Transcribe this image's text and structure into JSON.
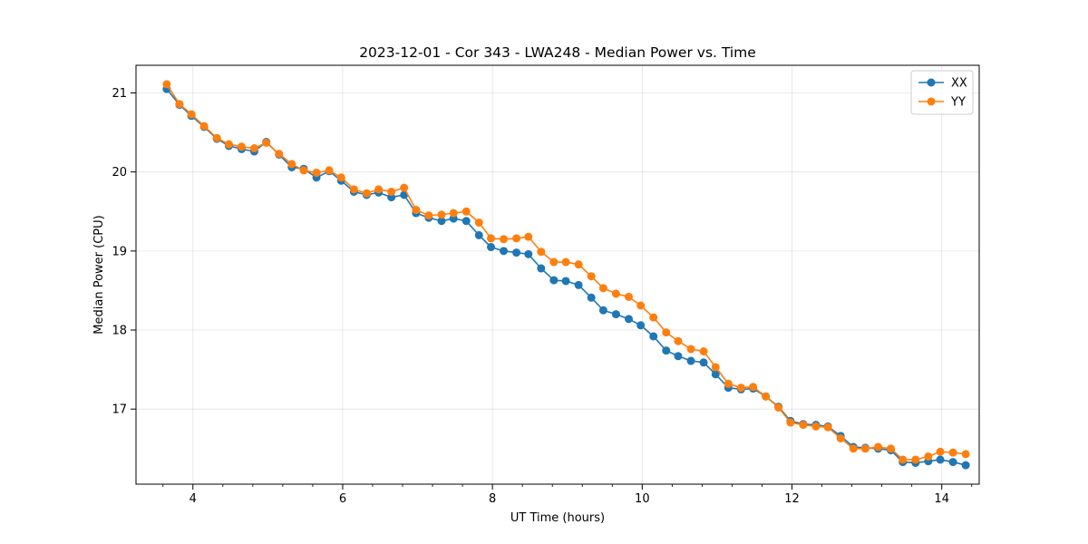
{
  "chart_data": {
    "type": "line",
    "title": "2023-12-01 - Cor 343 - LWA248 - Median Power vs. Time",
    "xlabel": "UT Time (hours)",
    "ylabel": "Median Power (CPU)",
    "xlim": [
      3.24,
      14.5
    ],
    "ylim": [
      16.05,
      21.35
    ],
    "xticks": [
      4,
      6,
      8,
      10,
      12,
      14
    ],
    "xtick_labels": [
      "4",
      "6",
      "8",
      "10",
      "12",
      "14"
    ],
    "yticks": [
      17,
      18,
      19,
      20,
      21
    ],
    "ytick_labels": [
      "17",
      "18",
      "19",
      "20",
      "21"
    ],
    "x_minor_step": 0.4,
    "grid": true,
    "legend_position": "top-right",
    "x": [
      3.65,
      3.82,
      3.98,
      4.15,
      4.32,
      4.48,
      4.65,
      4.82,
      4.98,
      5.15,
      5.32,
      5.48,
      5.65,
      5.82,
      5.98,
      6.15,
      6.32,
      6.48,
      6.65,
      6.82,
      6.98,
      7.15,
      7.32,
      7.48,
      7.65,
      7.82,
      7.98,
      8.15,
      8.32,
      8.48,
      8.65,
      8.82,
      8.98,
      9.15,
      9.32,
      9.48,
      9.65,
      9.82,
      9.98,
      10.15,
      10.32,
      10.48,
      10.65,
      10.82,
      10.98,
      11.15,
      11.32,
      11.48,
      11.65,
      11.82,
      11.98,
      12.15,
      12.32,
      12.48,
      12.65,
      12.82,
      12.98,
      13.15,
      13.32,
      13.48,
      13.65,
      13.82,
      13.98,
      14.15,
      14.32
    ],
    "series": [
      {
        "name": "XX",
        "color": "#1f77b4",
        "values": [
          21.05,
          20.85,
          20.71,
          20.57,
          20.42,
          20.33,
          20.29,
          20.26,
          20.38,
          20.22,
          20.06,
          20.04,
          19.93,
          20.01,
          19.89,
          19.75,
          19.71,
          19.74,
          19.68,
          19.71,
          19.48,
          19.42,
          19.38,
          19.41,
          19.38,
          19.2,
          19.05,
          19.0,
          18.98,
          18.96,
          18.78,
          18.63,
          18.62,
          18.57,
          18.41,
          18.25,
          18.2,
          18.14,
          18.06,
          17.92,
          17.74,
          17.67,
          17.61,
          17.59,
          17.44,
          17.27,
          17.25,
          17.26,
          17.16,
          17.03,
          16.85,
          16.81,
          16.8,
          16.78,
          16.66,
          16.52,
          16.51,
          16.5,
          16.48,
          16.33,
          16.32,
          16.34,
          16.36,
          16.33,
          16.29
        ]
      },
      {
        "name": "YY",
        "color": "#ff7f0e",
        "values": [
          21.11,
          20.86,
          20.73,
          20.58,
          20.43,
          20.35,
          20.32,
          20.3,
          20.37,
          20.23,
          20.1,
          20.02,
          19.99,
          20.02,
          19.93,
          19.78,
          19.73,
          19.78,
          19.75,
          19.8,
          19.52,
          19.45,
          19.46,
          19.48,
          19.5,
          19.36,
          19.16,
          19.15,
          19.16,
          19.18,
          18.99,
          18.86,
          18.86,
          18.83,
          18.68,
          18.53,
          18.46,
          18.42,
          18.31,
          18.16,
          17.97,
          17.86,
          17.76,
          17.73,
          17.53,
          17.32,
          17.27,
          17.28,
          17.16,
          17.02,
          16.83,
          16.8,
          16.78,
          16.77,
          16.63,
          16.5,
          16.5,
          16.52,
          16.5,
          16.36,
          16.36,
          16.4,
          16.46,
          16.45,
          16.43
        ]
      }
    ]
  }
}
